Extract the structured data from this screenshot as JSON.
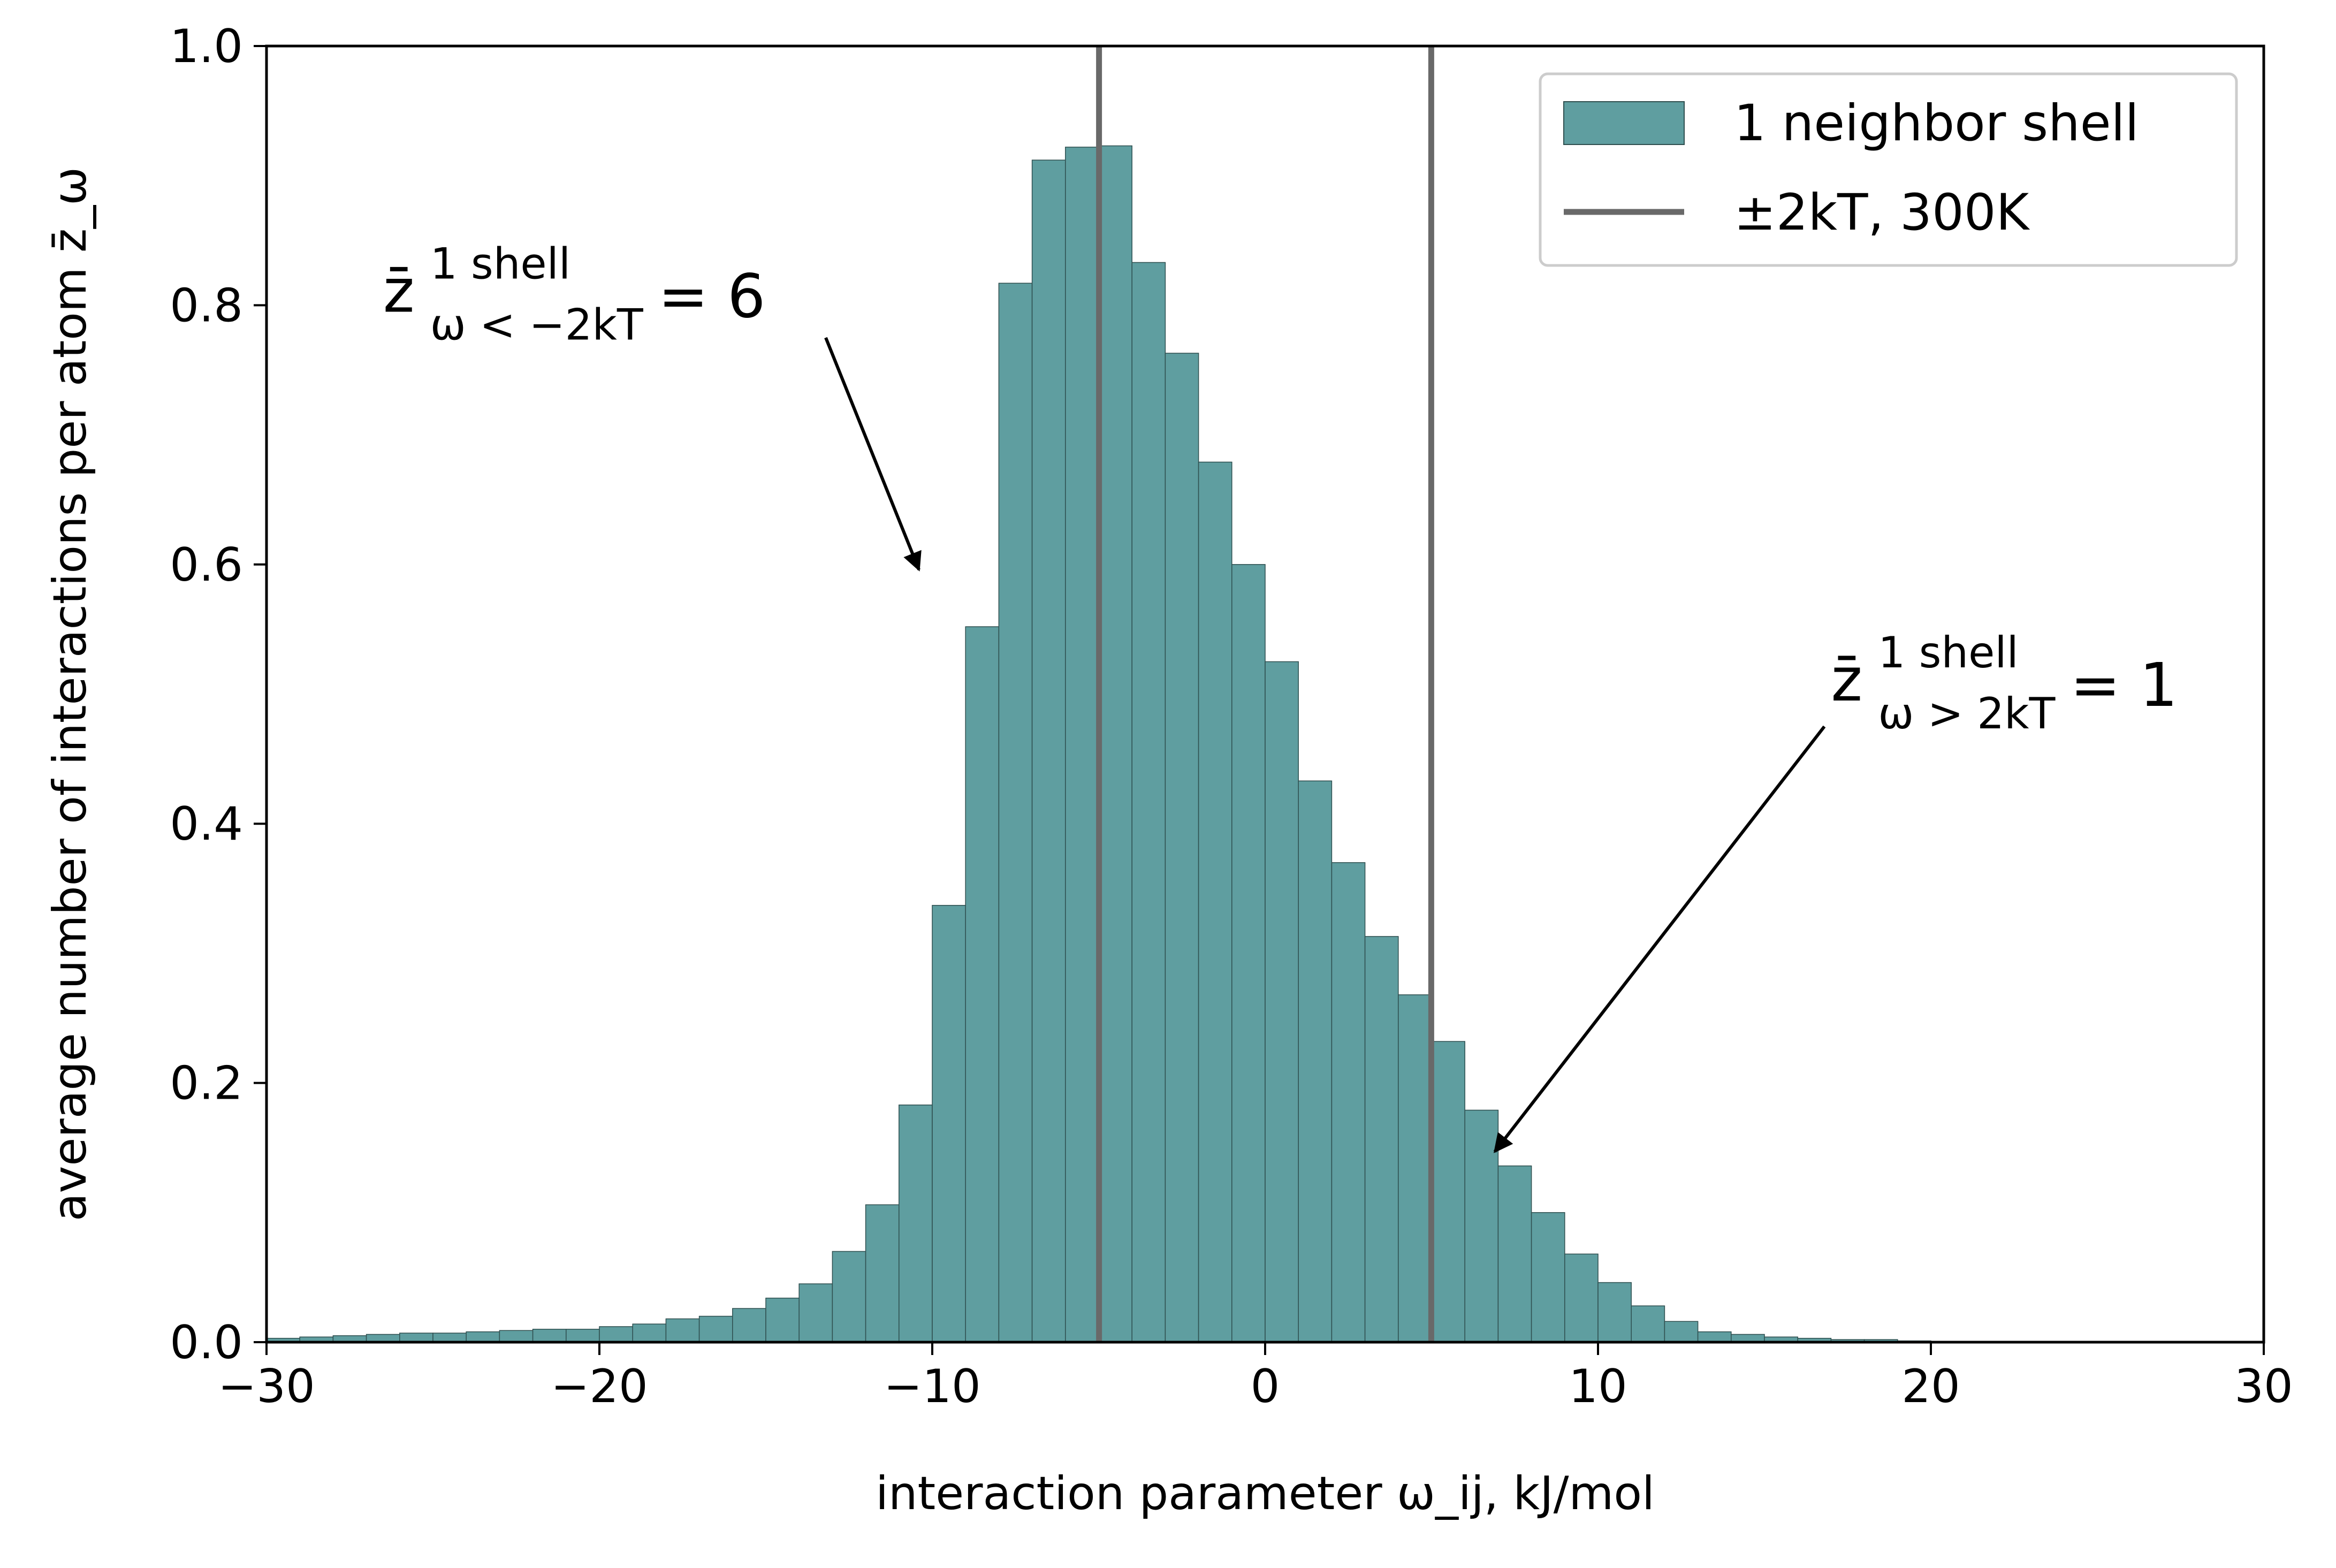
{
  "chart_data": {
    "type": "bar",
    "xlabel": "interaction parameter ω_ij, kJ/mol",
    "ylabel": "average number of interactions per atom z̄_ω",
    "xlim": [
      -30,
      30
    ],
    "ylim": [
      0,
      1.0
    ],
    "xticks": [
      -30,
      -20,
      -10,
      0,
      10,
      20,
      30
    ],
    "yticks": [
      0.0,
      0.2,
      0.4,
      0.6,
      0.8,
      1.0
    ],
    "xtick_labels": [
      "−30",
      "−20",
      "−10",
      "0",
      "10",
      "20",
      "30"
    ],
    "ytick_labels": [
      "0.0",
      "0.2",
      "0.4",
      "0.6",
      "0.8",
      "1.0"
    ],
    "grid": false,
    "legend_position": "top-right",
    "bin_width": 1,
    "bin_start": -30,
    "series": [
      {
        "name": "1 neighbor shell",
        "color": "#5f9ea0",
        "values": [
          0.003,
          0.004,
          0.005,
          0.006,
          0.007,
          0.007,
          0.008,
          0.009,
          0.01,
          0.01,
          0.012,
          0.014,
          0.018,
          0.02,
          0.026,
          0.034,
          0.045,
          0.07,
          0.106,
          0.183,
          0.337,
          0.552,
          0.817,
          0.912,
          0.922,
          0.923,
          0.833,
          0.763,
          0.679,
          0.6,
          0.525,
          0.433,
          0.37,
          0.313,
          0.268,
          0.232,
          0.179,
          0.136,
          0.1,
          0.068,
          0.046,
          0.028,
          0.016,
          0.008,
          0.006,
          0.004,
          0.003,
          0.002,
          0.002,
          0.001,
          0.0005,
          0.0003,
          0.0002,
          0,
          0,
          0,
          0,
          0,
          0,
          0
        ]
      }
    ],
    "vlines": {
      "name": "±2kT, 300K",
      "color": "#696969",
      "x": [
        -4.99,
        4.99
      ]
    },
    "annotations": [
      {
        "base": "z̄",
        "sup": "1 shell",
        "sub": "ω < −2kT",
        "value": "= 6",
        "text_at": [
          -26.5,
          0.795
        ],
        "arrow_from": [
          -13.2,
          0.775
        ],
        "arrow_to": [
          -10.4,
          0.596
        ]
      },
      {
        "base": "z̄",
        "sup": "1 shell",
        "sub": "ω > 2kT",
        "value": "= 1",
        "text_at": [
          17.0,
          0.495
        ],
        "arrow_from": [
          16.8,
          0.475
        ],
        "arrow_to": [
          6.9,
          0.147
        ]
      }
    ]
  }
}
